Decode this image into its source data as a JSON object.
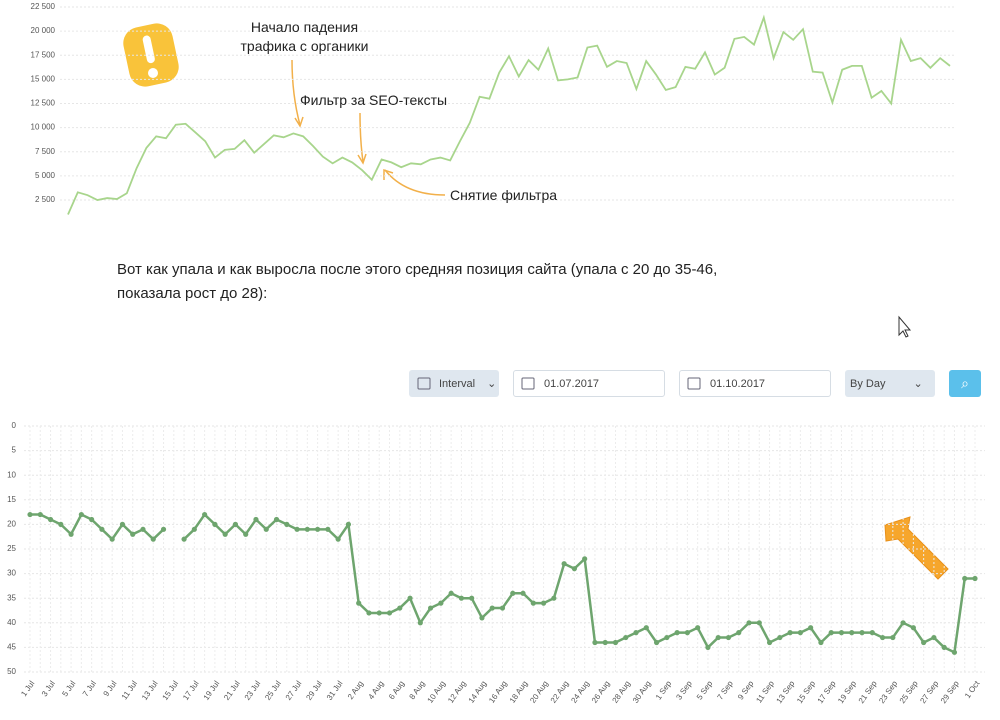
{
  "chart_data": [
    {
      "type": "line",
      "color": "#a8d58c",
      "annotations": [
        "Начало падения трафика с органики",
        "Фильтр за SEO-тексты",
        "Снятие фильтра"
      ],
      "values": [
        1000,
        3300,
        3000,
        2500,
        2700,
        2600,
        3200,
        5800,
        7900,
        9100,
        8900,
        10300,
        10400,
        9500,
        8600,
        6900,
        7700,
        7800,
        8700,
        7400,
        8300,
        9200,
        9000,
        9400,
        9100,
        8100,
        7000,
        6300,
        6900,
        6400,
        5600,
        4600,
        6700,
        6400,
        5900,
        6300,
        6200,
        6700,
        6900,
        6600,
        8600,
        10500,
        13200,
        13000,
        15700,
        17400,
        15300,
        17000,
        16000,
        18200,
        14900,
        15000,
        15200,
        18300,
        18500,
        16300,
        16900,
        16700,
        14000,
        16900,
        15500,
        13900,
        14200,
        16300,
        16100,
        17800,
        15500,
        16200,
        19200,
        19400,
        18600,
        21400,
        17200,
        19900,
        19100,
        20200,
        15800,
        15700,
        12600,
        16000,
        16400,
        16400,
        13100,
        13800,
        12500,
        19100,
        16900,
        17200,
        16200,
        17200,
        16400
      ],
      "ylim": [
        1000,
        22500
      ],
      "yticks": [
        {
          "value": 2500,
          "label": "2 500"
        },
        {
          "value": 5000,
          "label": "5 000"
        },
        {
          "value": 7500,
          "label": "7 500"
        },
        {
          "value": 10000,
          "label": "10 000"
        },
        {
          "value": 12500,
          "label": "12 500"
        },
        {
          "value": 15000,
          "label": "15 000"
        },
        {
          "value": 17500,
          "label": "17 500"
        },
        {
          "value": 20000,
          "label": "20 000"
        },
        {
          "value": 22500,
          "label": "22 500"
        }
      ],
      "grid": true
    },
    {
      "type": "line",
      "color": "#6ea56e",
      "markers": true,
      "categories": [
        "1 Jul",
        null,
        "3 Jul",
        null,
        "5 Jul",
        null,
        "7 Jul",
        null,
        "9 Jul",
        null,
        "11 Jul",
        null,
        "13 Jul",
        null,
        "15 Jul",
        null,
        "17 Jul",
        null,
        "19 Jul",
        null,
        "21 Jul",
        null,
        "23 Jul",
        null,
        "25 Jul",
        null,
        "27 Jul",
        null,
        "29 Jul",
        null,
        "31 Jul",
        null,
        "2 Aug",
        null,
        "4 Aug",
        null,
        "6 Aug",
        null,
        "8 Aug",
        null,
        "10 Aug",
        null,
        "12 Aug",
        null,
        "14 Aug",
        null,
        "16 Aug",
        null,
        "18 Aug",
        null,
        "20 Aug",
        null,
        "22 Aug",
        null,
        "24 Aug",
        null,
        "26 Aug",
        null,
        "28 Aug",
        null,
        "30 Aug",
        null,
        "1 Sep",
        null,
        "3 Sep",
        null,
        "5 Sep",
        null,
        "7 Sep",
        null,
        "9 Sep",
        null,
        "11 Sep",
        null,
        "13 Sep",
        null,
        "15 Sep",
        null,
        "17 Sep",
        null,
        "19 Sep",
        null,
        "21 Sep",
        null,
        "23 Sep",
        null,
        "25 Sep",
        null,
        "27 Sep",
        null,
        "29 Sep",
        null,
        "1 Oct"
      ],
      "values": [
        18,
        18,
        19,
        20,
        22,
        18,
        19,
        21,
        23,
        20,
        22,
        21,
        23,
        21,
        null,
        23,
        21,
        18,
        20,
        22,
        20,
        22,
        19,
        21,
        19,
        20,
        21,
        21,
        21,
        21,
        23,
        20,
        36,
        38,
        38,
        38,
        37,
        35,
        40,
        37,
        36,
        34,
        35,
        35,
        39,
        37,
        37,
        34,
        34,
        36,
        36,
        35,
        28,
        29,
        27,
        44,
        44,
        44,
        43,
        42,
        41,
        44,
        43,
        42,
        42,
        41,
        45,
        43,
        43,
        42,
        40,
        40,
        44,
        43,
        42,
        42,
        41,
        44,
        42,
        42,
        42,
        42,
        42,
        43,
        43,
        40,
        41,
        44,
        43,
        45,
        46,
        31,
        31
      ],
      "ylim": [
        50,
        0
      ],
      "yticks": [
        0,
        5,
        10,
        15,
        20,
        25,
        30,
        35,
        40,
        45,
        50
      ],
      "grid": true
    }
  ],
  "text": "Вот как упала и как выросла после этого средняя позиция сайта (упала с 20 до 35-46, показала рост до 28):",
  "controls": {
    "interval": "Interval",
    "date_from": "01.07.2017",
    "date_to": "01.10.2017",
    "period": "By Day"
  }
}
